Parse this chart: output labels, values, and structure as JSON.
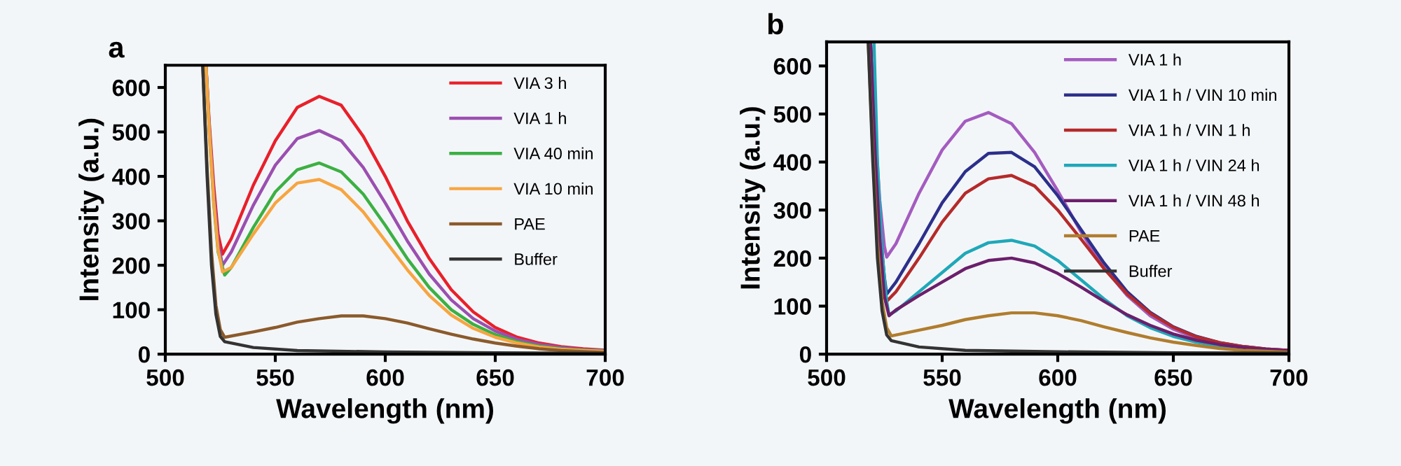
{
  "chart_data": [
    {
      "type": "line",
      "title": "a",
      "xlabel": "Wavelength (nm)",
      "ylabel": "Intensity (a.u.)",
      "xlim": [
        500,
        700
      ],
      "ylim": [
        0,
        650
      ],
      "xticks": [
        500,
        550,
        600,
        650,
        700
      ],
      "yticks": [
        0,
        100,
        200,
        300,
        400,
        500,
        600
      ],
      "grid": false,
      "legend": "top right",
      "marker": "none",
      "line_style": "solid",
      "series": [
        {
          "name": "VIA 3 h",
          "color": "#e8202a",
          "x": [
            518.5,
            520,
            522,
            524,
            526,
            530,
            540,
            550,
            560,
            570,
            580,
            590,
            600,
            610,
            620,
            630,
            640,
            650,
            660,
            670,
            680,
            690,
            700
          ],
          "values": [
            650,
            520,
            380,
            270,
            225,
            260,
            380,
            480,
            555,
            580,
            560,
            490,
            400,
            300,
            215,
            145,
            95,
            60,
            38,
            25,
            17,
            12,
            9
          ]
        },
        {
          "name": "VIA 1 h",
          "color": "#9b4fb0",
          "x": [
            518.5,
            520,
            522,
            524,
            526,
            530,
            540,
            550,
            560,
            570,
            580,
            590,
            600,
            610,
            620,
            630,
            640,
            650,
            660,
            670,
            680,
            690,
            700
          ],
          "values": [
            650,
            510,
            360,
            250,
            200,
            230,
            335,
            425,
            485,
            503,
            480,
            420,
            340,
            255,
            180,
            122,
            80,
            52,
            33,
            22,
            15,
            10,
            8
          ]
        },
        {
          "name": "VIA 40 min",
          "color": "#3cb043",
          "x": [
            518.5,
            520,
            522,
            524,
            527,
            530,
            540,
            550,
            560,
            570,
            580,
            590,
            600,
            610,
            620,
            630,
            640,
            650,
            660,
            670,
            680,
            690,
            700
          ],
          "values": [
            650,
            500,
            340,
            230,
            178,
            195,
            285,
            365,
            415,
            430,
            410,
            360,
            290,
            215,
            150,
            100,
            67,
            44,
            28,
            18,
            12,
            9,
            7
          ]
        },
        {
          "name": "VIA 10 min",
          "color": "#f7a541",
          "x": [
            518.5,
            520,
            522,
            524,
            526,
            530,
            540,
            550,
            560,
            570,
            580,
            590,
            600,
            610,
            620,
            630,
            640,
            650,
            660,
            670,
            680,
            690,
            700
          ],
          "values": [
            650,
            500,
            345,
            235,
            185,
            195,
            270,
            340,
            385,
            393,
            370,
            320,
            255,
            190,
            132,
            88,
            58,
            38,
            25,
            16,
            11,
            8,
            6
          ]
        },
        {
          "name": "PAE",
          "color": "#8b5a2b",
          "x": [
            517,
            519,
            521,
            523,
            525,
            527,
            540,
            550,
            560,
            570,
            580,
            590,
            600,
            610,
            620,
            630,
            640,
            650,
            660,
            670,
            680,
            690,
            700
          ],
          "values": [
            650,
            420,
            230,
            110,
            55,
            38,
            50,
            60,
            72,
            80,
            86,
            86,
            80,
            70,
            57,
            45,
            34,
            25,
            18,
            12,
            8,
            6,
            4
          ]
        },
        {
          "name": "Buffer",
          "color": "#333333",
          "x": [
            517,
            519,
            521,
            523,
            525,
            527,
            540,
            560,
            600,
            650,
            700
          ],
          "values": [
            650,
            400,
            200,
            90,
            40,
            28,
            15,
            8,
            5,
            3,
            2
          ]
        }
      ]
    },
    {
      "type": "line",
      "title": "b",
      "xlabel": "Wavelength (nm)",
      "ylabel": "Intensity (a.u.)",
      "xlim": [
        500,
        700
      ],
      "ylim": [
        0,
        650
      ],
      "xticks": [
        500,
        550,
        600,
        650,
        700
      ],
      "yticks": [
        0,
        100,
        200,
        300,
        400,
        500,
        600
      ],
      "grid": false,
      "legend": "top right",
      "marker": "none",
      "line_style": "solid",
      "series": [
        {
          "name": "VIA 1 h",
          "color": "#a45cc0",
          "x": [
            519,
            521,
            523,
            525,
            526,
            530,
            540,
            550,
            560,
            570,
            580,
            590,
            600,
            610,
            620,
            630,
            640,
            650,
            660,
            670,
            680,
            690,
            700
          ],
          "values": [
            650,
            470,
            320,
            225,
            202,
            230,
            335,
            425,
            485,
            503,
            480,
            420,
            340,
            255,
            180,
            122,
            80,
            52,
            33,
            22,
            15,
            10,
            8
          ]
        },
        {
          "name": "VIA 1 h / VIN 10 min",
          "color": "#2c2f8a",
          "x": [
            519,
            521,
            523,
            525,
            526,
            530,
            540,
            550,
            560,
            570,
            580,
            590,
            600,
            610,
            620,
            630,
            640,
            650,
            660,
            670,
            680,
            690,
            700
          ],
          "values": [
            650,
            440,
            270,
            160,
            125,
            150,
            230,
            315,
            380,
            418,
            420,
            390,
            330,
            260,
            190,
            130,
            87,
            57,
            37,
            24,
            16,
            11,
            8
          ]
        },
        {
          "name": "VIA 1 h / VIN 1 h",
          "color": "#b52a2a",
          "x": [
            519,
            521,
            523,
            525,
            526,
            530,
            540,
            550,
            560,
            570,
            580,
            590,
            600,
            610,
            620,
            630,
            640,
            650,
            660,
            670,
            680,
            690,
            700
          ],
          "values": [
            650,
            430,
            260,
            145,
            110,
            130,
            200,
            275,
            335,
            365,
            372,
            350,
            300,
            240,
            178,
            125,
            85,
            56,
            36,
            24,
            16,
            11,
            8
          ]
        },
        {
          "name": "VIA 1 h / VIN 24 h",
          "color": "#1fa8b8",
          "x": [
            520.5,
            522,
            524,
            526,
            527,
            530,
            540,
            550,
            560,
            570,
            580,
            590,
            600,
            610,
            620,
            630,
            640,
            650,
            660,
            670,
            680
          ],
          "values": [
            650,
            400,
            210,
            110,
            82,
            90,
            130,
            170,
            210,
            232,
            237,
            225,
            195,
            155,
            115,
            80,
            55,
            37,
            25,
            16,
            11
          ]
        },
        {
          "name": "VIA 1 h / VIN 48 h",
          "color": "#6b1f6b",
          "x": [
            519,
            521,
            523,
            525,
            527,
            530,
            540,
            550,
            560,
            570,
            580,
            590,
            600,
            610,
            620,
            630,
            640,
            650,
            660,
            670,
            680,
            690,
            700
          ],
          "values": [
            650,
            420,
            240,
            120,
            80,
            92,
            122,
            150,
            178,
            195,
            200,
            190,
            168,
            140,
            110,
            82,
            60,
            42,
            29,
            20,
            14,
            10,
            7
          ]
        },
        {
          "name": "PAE",
          "color": "#b07d2e",
          "x": [
            518,
            520,
            522,
            524,
            526,
            528,
            540,
            550,
            560,
            570,
            580,
            590,
            600,
            610,
            620,
            630,
            640,
            650,
            660,
            670,
            680,
            690,
            700
          ],
          "values": [
            650,
            420,
            230,
            110,
            55,
            38,
            50,
            60,
            72,
            80,
            86,
            86,
            80,
            70,
            57,
            45,
            34,
            25,
            18,
            12,
            8,
            6,
            4
          ]
        },
        {
          "name": "Buffer",
          "color": "#333333",
          "x": [
            518,
            520,
            522,
            524,
            526,
            528,
            540,
            560,
            600,
            650,
            700
          ],
          "values": [
            650,
            400,
            200,
            90,
            40,
            28,
            15,
            8,
            5,
            3,
            2
          ]
        }
      ]
    }
  ]
}
